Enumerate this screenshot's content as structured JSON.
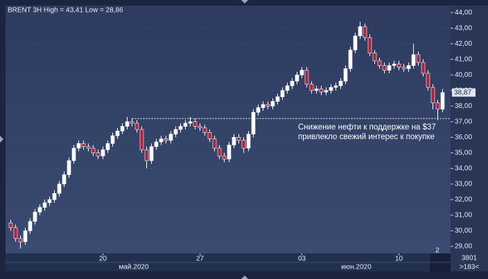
{
  "chart_data": {
    "type": "candlestick",
    "title": "BRENT 3H High = 43,41 Low = 28,86",
    "categories": [
      null,
      null,
      null,
      null,
      null,
      null,
      null,
      null,
      null,
      null,
      null,
      null,
      null,
      null,
      null,
      null,
      null,
      null,
      null,
      "20",
      null,
      null,
      null,
      null,
      null,
      null,
      null,
      null,
      null,
      null,
      null,
      null,
      null,
      null,
      null,
      null,
      null,
      null,
      null,
      "27",
      null,
      null,
      null,
      null,
      null,
      null,
      null,
      null,
      null,
      null,
      null,
      null,
      null,
      null,
      null,
      null,
      null,
      null,
      null,
      null,
      "03",
      null,
      null,
      null,
      null,
      null,
      null,
      null,
      null,
      null,
      null,
      null,
      null,
      null,
      null,
      null,
      null,
      null,
      null,
      null,
      "10",
      null,
      null,
      null,
      null,
      null,
      null,
      null,
      null,
      null
    ],
    "open": [
      30.5,
      30.2,
      29.5,
      29.3,
      30.0,
      30.6,
      31.2,
      31.5,
      31.8,
      32.0,
      32.4,
      33.0,
      33.6,
      34.5,
      35.3,
      35.6,
      35.4,
      35.3,
      35.0,
      34.8,
      35.2,
      35.6,
      36.1,
      36.4,
      36.7,
      37.0,
      36.9,
      36.5,
      35.2,
      34.5,
      35.4,
      35.7,
      35.9,
      35.8,
      36.2,
      36.5,
      36.7,
      36.9,
      37.0,
      36.7,
      36.6,
      36.3,
      35.9,
      35.3,
      34.8,
      34.6,
      35.5,
      36.0,
      35.8,
      35.3,
      36.2,
      37.6,
      37.9,
      38.1,
      38.0,
      38.3,
      38.6,
      39.0,
      39.3,
      39.6,
      40.0,
      40.3,
      39.4,
      39.0,
      39.1,
      38.9,
      39.0,
      39.2,
      39.3,
      39.6,
      40.4,
      41.6,
      42.5,
      43.1,
      42.4,
      41.4,
      40.9,
      40.6,
      40.3,
      40.6,
      40.7,
      40.5,
      40.4,
      40.6,
      41.3,
      40.8,
      40.1,
      39.2,
      38.2,
      37.8
    ],
    "high": [
      30.7,
      30.4,
      29.7,
      30.2,
      30.8,
      31.4,
      31.7,
      32.0,
      32.2,
      32.6,
      33.2,
      33.8,
      34.7,
      35.5,
      35.8,
      35.8,
      35.6,
      35.5,
      35.2,
      35.4,
      35.8,
      36.3,
      36.6,
      36.9,
      37.3,
      37.2,
      37.1,
      36.7,
      35.4,
      35.6,
      35.9,
      36.1,
      36.1,
      36.4,
      36.7,
      36.9,
      37.1,
      37.3,
      37.2,
      36.9,
      36.8,
      36.5,
      36.1,
      35.5,
      35.0,
      35.7,
      36.2,
      36.2,
      36.0,
      36.4,
      37.8,
      38.1,
      38.3,
      38.3,
      38.5,
      38.8,
      39.2,
      39.5,
      39.8,
      40.2,
      40.5,
      40.5,
      39.6,
      39.3,
      39.3,
      39.2,
      39.4,
      39.5,
      39.8,
      40.6,
      41.8,
      42.7,
      43.41,
      43.3,
      42.6,
      41.6,
      41.1,
      40.8,
      40.8,
      40.9,
      40.9,
      40.7,
      40.8,
      42.0,
      41.5,
      41.0,
      40.3,
      39.4,
      38.4,
      39.1
    ],
    "low": [
      30.0,
      29.3,
      28.86,
      29.1,
      29.8,
      30.4,
      31.0,
      31.3,
      31.6,
      31.8,
      32.2,
      32.8,
      33.4,
      34.3,
      35.1,
      35.2,
      35.1,
      34.8,
      34.6,
      34.6,
      35.0,
      35.4,
      35.9,
      36.2,
      36.5,
      36.7,
      36.3,
      35.0,
      34.0,
      34.3,
      35.2,
      35.5,
      35.6,
      35.6,
      36.0,
      36.3,
      36.5,
      36.7,
      36.5,
      36.4,
      36.1,
      35.7,
      35.1,
      34.6,
      34.4,
      34.4,
      35.3,
      35.6,
      35.0,
      35.1,
      36.0,
      37.4,
      37.7,
      37.8,
      37.8,
      38.1,
      38.4,
      38.8,
      39.1,
      39.4,
      39.8,
      39.2,
      38.8,
      38.8,
      38.7,
      38.7,
      38.8,
      39.0,
      39.1,
      39.4,
      40.2,
      41.4,
      42.3,
      42.2,
      41.2,
      40.7,
      40.4,
      40.1,
      40.1,
      40.4,
      40.3,
      40.2,
      40.2,
      40.4,
      40.6,
      39.9,
      39.0,
      37.8,
      37.1,
      37.6
    ],
    "close": [
      30.2,
      29.5,
      29.3,
      30.0,
      30.6,
      31.2,
      31.5,
      31.8,
      32.0,
      32.4,
      33.0,
      33.6,
      34.5,
      35.3,
      35.6,
      35.4,
      35.3,
      35.0,
      34.8,
      35.2,
      35.6,
      36.1,
      36.4,
      36.7,
      37.0,
      36.9,
      36.5,
      35.2,
      34.5,
      35.4,
      35.7,
      35.9,
      35.8,
      36.2,
      36.5,
      36.7,
      36.9,
      37.0,
      36.7,
      36.6,
      36.3,
      35.9,
      35.3,
      34.8,
      34.6,
      35.5,
      36.0,
      35.8,
      35.3,
      36.2,
      37.6,
      37.9,
      38.1,
      38.0,
      38.3,
      38.6,
      39.0,
      39.3,
      39.6,
      40.0,
      40.3,
      39.4,
      39.0,
      39.1,
      38.9,
      39.0,
      39.2,
      39.3,
      39.6,
      40.4,
      41.6,
      42.5,
      43.1,
      42.4,
      41.4,
      40.9,
      40.6,
      40.3,
      40.6,
      40.7,
      40.5,
      40.4,
      40.6,
      41.3,
      40.8,
      40.1,
      39.2,
      38.2,
      37.8,
      38.87
    ],
    "up_color": "#ffffff",
    "down_color": "#b0223a",
    "ylim": [
      28.55,
      44.45
    ],
    "yticks": [
      {
        "value": 29,
        "label": "29,00"
      },
      {
        "value": 30,
        "label": "30,00"
      },
      {
        "value": 31,
        "label": "31,00"
      },
      {
        "value": 32,
        "label": "32,00"
      },
      {
        "value": 33,
        "label": "33,00"
      },
      {
        "value": 34,
        "label": "34,00"
      },
      {
        "value": 35,
        "label": "35,00"
      },
      {
        "value": 36,
        "label": "36,00"
      },
      {
        "value": 37,
        "label": "37,00"
      },
      {
        "value": 38,
        "label": "38,00"
      },
      {
        "value": 39,
        "label": "39,00"
      },
      {
        "value": 40,
        "label": "40,00"
      },
      {
        "value": 41,
        "label": "41,00"
      },
      {
        "value": 42,
        "label": "42,00"
      },
      {
        "value": 43,
        "label": "43,00"
      },
      {
        "value": 44,
        "label": "44,00"
      }
    ],
    "grid": true,
    "last_price": {
      "value": 38.87,
      "label": "38,87"
    },
    "reference_line": 37.2,
    "annotation": [
      "Снижение нефти к поддержке на $37",
      "привлекло свежий интерес к покупке"
    ],
    "months": [
      "май.2020",
      "июн.2020"
    ],
    "panel_number": "2",
    "footer": [
      "3801",
      ">183<"
    ]
  }
}
